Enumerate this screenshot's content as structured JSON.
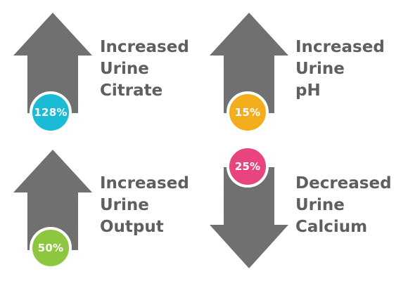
{
  "items": [
    {
      "direction": "up",
      "value": "128%",
      "color": "#1cbbd5",
      "lines": [
        "Increased",
        "Urine",
        "Citrate"
      ]
    },
    {
      "direction": "up",
      "value": "15%",
      "color": "#f2ae1c",
      "lines": [
        "Increased",
        "Urine",
        "pH"
      ]
    },
    {
      "direction": "up",
      "value": "50%",
      "color": "#8dc63f",
      "lines": [
        "Increased",
        "Urine",
        "Output"
      ]
    },
    {
      "direction": "down",
      "value": "25%",
      "color": "#e8457f",
      "lines": [
        "Decreased",
        "Urine",
        "Calcium"
      ]
    }
  ],
  "colors": {
    "arrow": "#6e6e6e",
    "text": "#5f5f5f"
  }
}
